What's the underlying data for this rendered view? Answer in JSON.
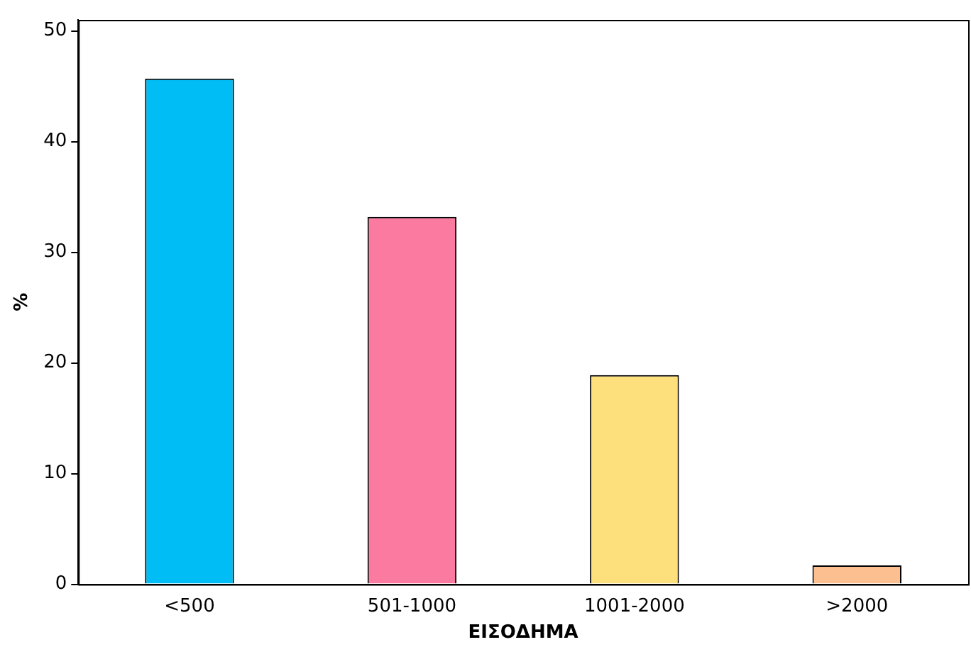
{
  "chart_data": {
    "type": "bar",
    "xlabel": "ΕΙΣΟΔΗΜΑ",
    "ylabel": "%",
    "categories": [
      "<500",
      "501-1000",
      "1001-2000",
      ">2000"
    ],
    "values": [
      45.7,
      33.2,
      18.9,
      1.7
    ],
    "colors": [
      "#00bdf5",
      "#fb7ba0",
      "#fde07c",
      "#fcbf90"
    ],
    "ylim": [
      0,
      51
    ],
    "yticks": [
      0,
      10,
      20,
      30,
      40,
      50
    ],
    "grid": false,
    "legend": false
  }
}
